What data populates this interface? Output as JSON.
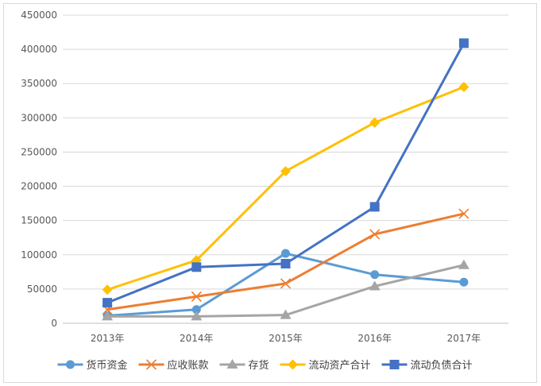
{
  "chart_data": {
    "type": "line",
    "categories": [
      "2013年",
      "2014年",
      "2015年",
      "2016年",
      "2017年"
    ],
    "ylim": [
      0,
      450000
    ],
    "yticks": [
      "0",
      "50000",
      "100000",
      "150000",
      "200000",
      "250000",
      "300000",
      "350000",
      "400000",
      "450000"
    ],
    "grid": true,
    "legend_position": "bottom",
    "series": [
      {
        "name": "货币资金",
        "values": [
          11000,
          20000,
          102000,
          71000,
          60000
        ],
        "color": "#5B9BD5",
        "marker": "circle"
      },
      {
        "name": "应收账款",
        "values": [
          20000,
          39000,
          58000,
          130000,
          160000
        ],
        "color": "#ED7D31",
        "marker": "x"
      },
      {
        "name": "存货",
        "values": [
          10000,
          10000,
          12000,
          54000,
          85000
        ],
        "color": "#A5A5A5",
        "marker": "triangle"
      },
      {
        "name": "流动资产合计",
        "values": [
          49000,
          92000,
          222000,
          293000,
          345000
        ],
        "color": "#FFC000",
        "marker": "diamond"
      },
      {
        "name": "流动负债合计",
        "values": [
          30000,
          82000,
          87000,
          170000,
          409000
        ],
        "color": "#4472C4",
        "marker": "square"
      }
    ]
  }
}
